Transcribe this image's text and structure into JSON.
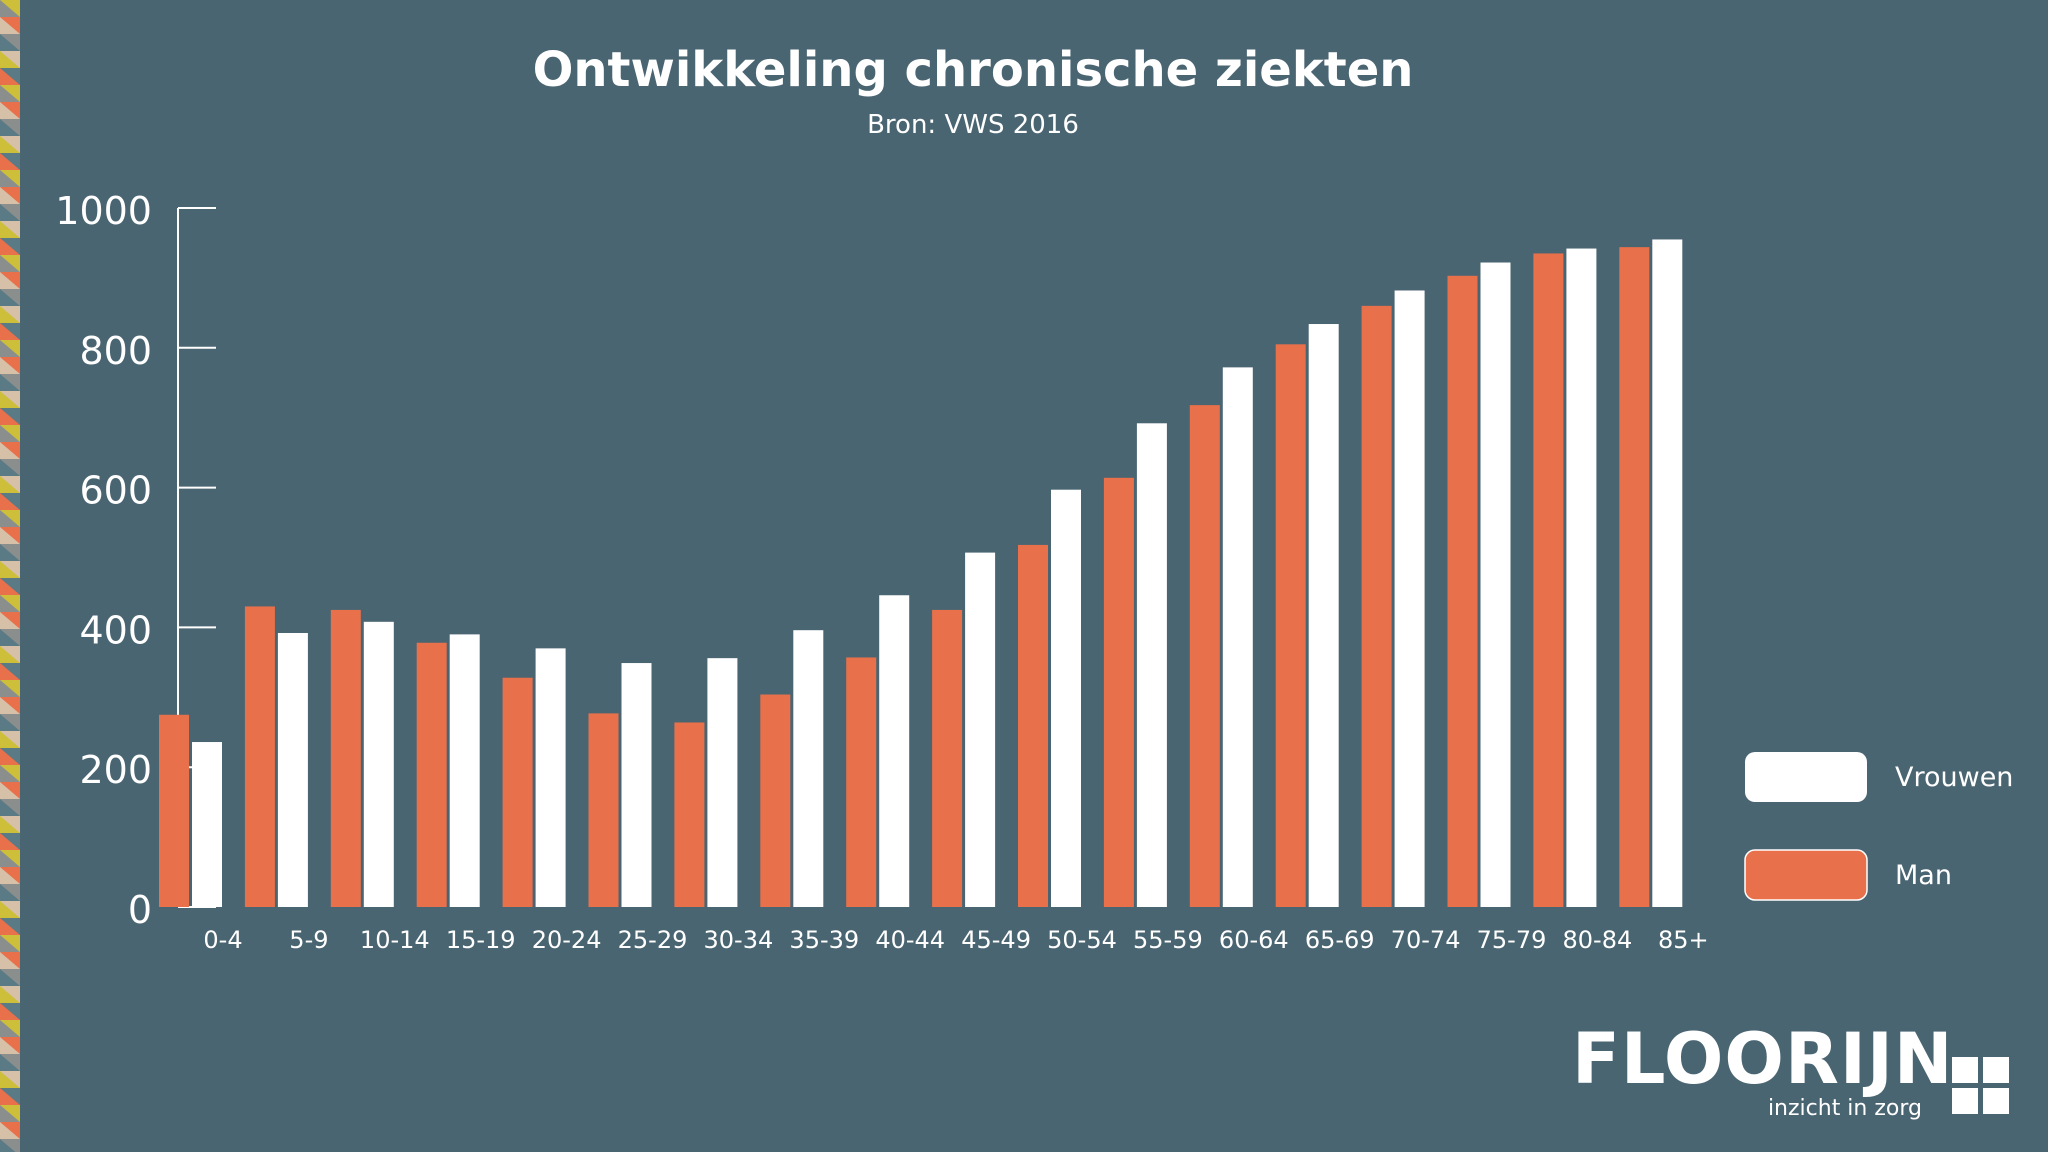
{
  "colors": {
    "background": "#4a6572",
    "man": "#e8704a",
    "vrouwen": "#ffffff",
    "text": "#ffffff",
    "stripe": [
      "#cdbf3a",
      "#e8704a",
      "#8a8f8d",
      "#d7c0a8",
      "#5a7a86"
    ]
  },
  "logo": {
    "name": "FLOORIJN",
    "tagline": "inzicht in zorg",
    "icon": "grid-squares-icon"
  },
  "chart_data": {
    "type": "bar",
    "title": "Ontwikkeling chronische ziekten",
    "subtitle": "Bron: VWS 2016",
    "xlabel": "",
    "ylabel": "",
    "ylim": [
      0,
      1000
    ],
    "yticks": [
      0,
      200,
      400,
      600,
      800,
      1000
    ],
    "grid": false,
    "legend_position": "right",
    "categories": [
      "0-4",
      "5-9",
      "10-14",
      "15-19",
      "20-24",
      "25-29",
      "30-34",
      "35-39",
      "40-44",
      "45-49",
      "50-54",
      "55-59",
      "60-64",
      "65-69",
      "70-74",
      "75-79",
      "80-84",
      "85+"
    ],
    "series": [
      {
        "name": "Man",
        "color": "#e8704a",
        "values": [
          275,
          430,
          425,
          378,
          328,
          277,
          264,
          304,
          357,
          425,
          518,
          614,
          718,
          805,
          860,
          903,
          935,
          944
        ]
      },
      {
        "name": "Vrouwen",
        "color": "#ffffff",
        "values": [
          236,
          392,
          408,
          390,
          370,
          349,
          356,
          396,
          446,
          507,
          597,
          692,
          772,
          834,
          882,
          922,
          942,
          955
        ]
      }
    ],
    "legend_order": [
      "Vrouwen",
      "Man"
    ]
  }
}
